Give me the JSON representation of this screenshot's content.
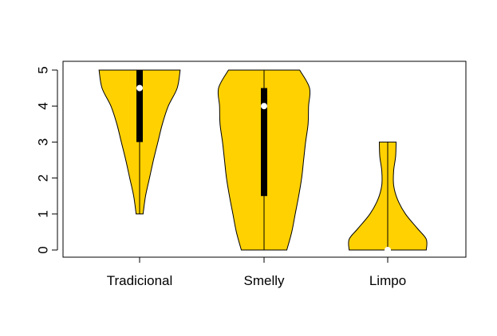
{
  "chart_data": {
    "type": "violin",
    "title": "",
    "xlabel": "",
    "ylabel": "",
    "ylim": [
      0,
      5
    ],
    "yticks": [
      0,
      1,
      2,
      3,
      4,
      5
    ],
    "fill_color": "#FFD100",
    "box_color": "#000000",
    "median_color": "#FFFFFF",
    "categories": [
      "Tradicional",
      "Smelly",
      "Limpo"
    ],
    "series": [
      {
        "category": "Tradicional",
        "min": 1,
        "q1": 3,
        "median": 4.5,
        "q3": 5,
        "max": 5,
        "density": [
          [
            1.0,
            0.07
          ],
          [
            1.5,
            0.12
          ],
          [
            2.0,
            0.2
          ],
          [
            2.5,
            0.28
          ],
          [
            3.0,
            0.37
          ],
          [
            3.5,
            0.46
          ],
          [
            4.0,
            0.58
          ],
          [
            4.5,
            0.76
          ],
          [
            5.0,
            0.82
          ]
        ]
      },
      {
        "category": "Smelly",
        "min": 0,
        "q1": 1.5,
        "median": 4,
        "q3": 4.5,
        "max": 5,
        "density": [
          [
            0.0,
            0.46
          ],
          [
            0.5,
            0.56
          ],
          [
            1.0,
            0.63
          ],
          [
            1.5,
            0.7
          ],
          [
            2.0,
            0.76
          ],
          [
            2.5,
            0.8
          ],
          [
            3.0,
            0.84
          ],
          [
            3.5,
            0.89
          ],
          [
            4.0,
            0.9
          ],
          [
            4.5,
            0.92
          ],
          [
            5.0,
            0.72
          ]
        ]
      },
      {
        "category": "Limpo",
        "min": 0,
        "q1": 0,
        "median": 0,
        "q3": 0,
        "max": 3,
        "density": [
          [
            0.0,
            0.78
          ],
          [
            0.3,
            0.78
          ],
          [
            0.6,
            0.6
          ],
          [
            1.0,
            0.36
          ],
          [
            1.4,
            0.2
          ],
          [
            1.8,
            0.12
          ],
          [
            2.2,
            0.12
          ],
          [
            2.6,
            0.16
          ],
          [
            3.0,
            0.17
          ]
        ]
      }
    ]
  }
}
